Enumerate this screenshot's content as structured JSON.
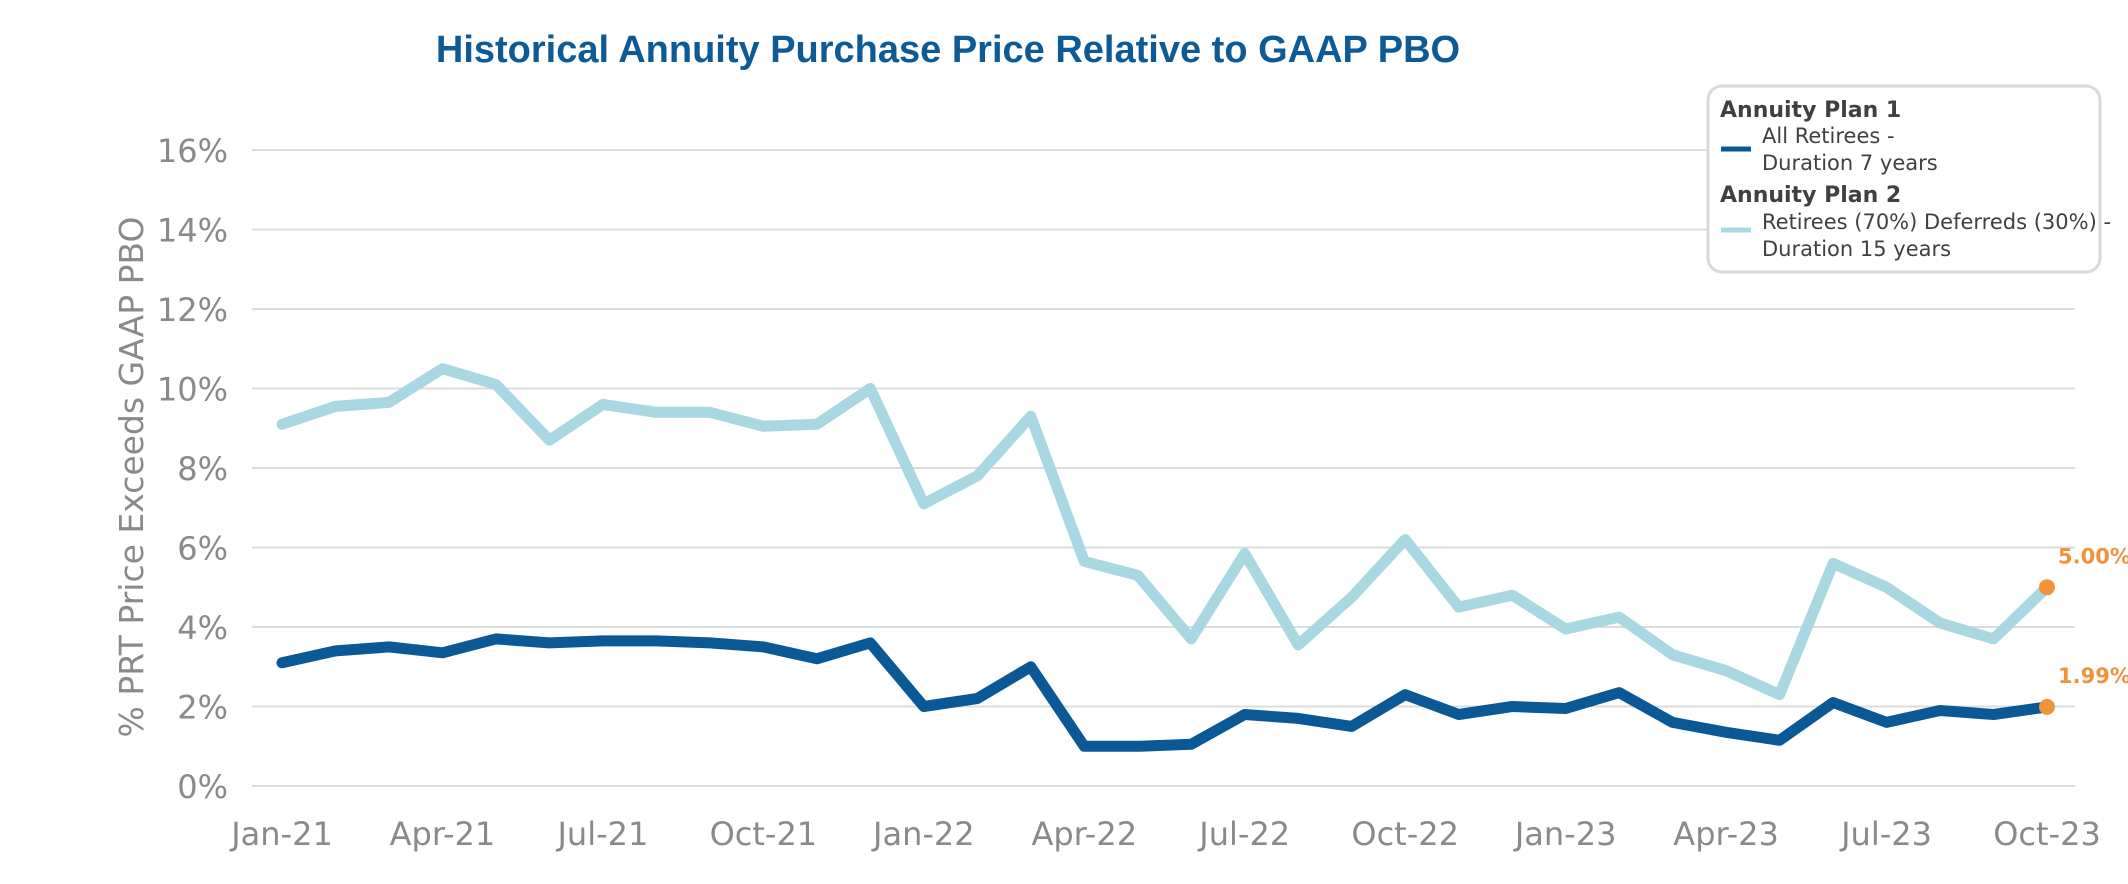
{
  "chart_data": {
    "type": "line",
    "title": "Historical Annuity Purchase Price Relative to GAAP PBO",
    "xlabel": "",
    "ylabel": "% PRT Price Exceeds GAAP PBO",
    "ylim": [
      0,
      16
    ],
    "yticks": [
      {
        "value": 0,
        "label": "0%"
      },
      {
        "value": 2,
        "label": "2%"
      },
      {
        "value": 4,
        "label": "4%"
      },
      {
        "value": 6,
        "label": "6%"
      },
      {
        "value": 8,
        "label": "8%"
      },
      {
        "value": 10,
        "label": "10%"
      },
      {
        "value": 12,
        "label": "12%"
      },
      {
        "value": 14,
        "label": "14%"
      },
      {
        "value": 16,
        "label": "16%"
      }
    ],
    "xticks": [
      {
        "index": 0,
        "label": "Jan-21"
      },
      {
        "index": 3,
        "label": "Apr-21"
      },
      {
        "index": 6,
        "label": "Jul-21"
      },
      {
        "index": 9,
        "label": "Oct-21"
      },
      {
        "index": 12,
        "label": "Jan-22"
      },
      {
        "index": 15,
        "label": "Apr-22"
      },
      {
        "index": 18,
        "label": "Jul-22"
      },
      {
        "index": 21,
        "label": "Oct-22"
      },
      {
        "index": 24,
        "label": "Jan-23"
      },
      {
        "index": 27,
        "label": "Apr-23"
      },
      {
        "index": 30,
        "label": "Jul-23"
      },
      {
        "index": 33,
        "label": "Oct-23"
      }
    ],
    "grid": true,
    "legend_position": "top-right",
    "series": [
      {
        "name": "All Retirees - Duration 7 years",
        "group": "Annuity Plan 1",
        "color": "#0a5896",
        "values": [
          3.1,
          3.4,
          3.5,
          3.35,
          3.7,
          3.6,
          3.65,
          3.65,
          3.6,
          3.5,
          3.2,
          3.6,
          2.0,
          2.2,
          3.0,
          1.0,
          1.0,
          1.05,
          1.8,
          1.7,
          1.5,
          2.3,
          1.8,
          2.0,
          1.95,
          2.35,
          1.6,
          1.35,
          1.15,
          2.1,
          1.6,
          1.9,
          1.8,
          1.99
        ]
      },
      {
        "name": "Retirees (70%) Deferreds (30%) - Duration 15 years",
        "group": "Annuity Plan 2",
        "color": "#a9d7e2",
        "values": [
          9.1,
          9.55,
          9.65,
          10.5,
          10.1,
          8.7,
          9.6,
          9.4,
          9.4,
          9.05,
          9.1,
          10.0,
          7.1,
          7.8,
          9.3,
          5.65,
          5.3,
          3.7,
          5.85,
          3.55,
          4.75,
          6.2,
          4.5,
          4.8,
          3.95,
          4.25,
          3.3,
          2.9,
          2.3,
          5.6,
          5.0,
          4.1,
          3.7,
          5.0
        ]
      }
    ],
    "annotations": [
      {
        "series": 1,
        "index": 33,
        "text": "5.00%",
        "marker_color": "#f0943c"
      },
      {
        "series": 0,
        "index": 33,
        "text": "1.99%",
        "marker_color": "#f0943c"
      }
    ],
    "legend": {
      "groups": [
        {
          "title": "Annuity Plan 1",
          "line1": "All Retirees -",
          "line2": "Duration 7 years"
        },
        {
          "title": "Annuity Plan 2",
          "line1": "Retirees (70%) Deferreds (30%) -",
          "line2": "Duration 15 years"
        }
      ]
    }
  }
}
